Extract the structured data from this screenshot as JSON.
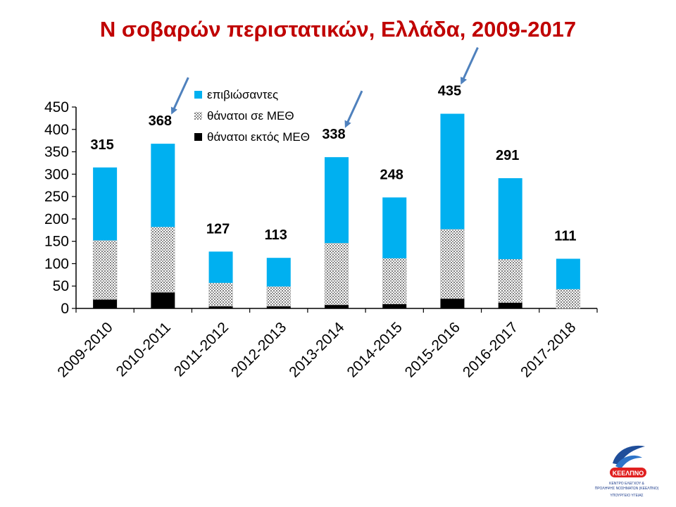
{
  "title": "Ν σοβαρών περιστατικών, Ελλάδα, 2009-2017",
  "colors": {
    "title": "#c00000",
    "survivors": "#00b0f0",
    "deaths_icu": "#a6a6a6",
    "deaths_outside_icu": "#000000",
    "arrow": "#4f81bd",
    "axis": "#000000"
  },
  "chart_data": {
    "type": "bar",
    "stacked": true,
    "categories": [
      "2009-2010",
      "2010-2011",
      "2011-2012",
      "2012-2013",
      "2013-2014",
      "2014-2015",
      "2015-2016",
      "2016-2017",
      "2017-2018"
    ],
    "series": [
      {
        "name": "θάνατοι εκτός ΜΕΘ",
        "pattern": "solid",
        "values": [
          20,
          36,
          5,
          5,
          8,
          10,
          22,
          13,
          0
        ]
      },
      {
        "name": "θάνατοι σε ΜΕΘ",
        "pattern": "dotted",
        "values": [
          132,
          146,
          52,
          44,
          138,
          102,
          155,
          97,
          43
        ]
      },
      {
        "name": "επιβιώσαντες",
        "pattern": "solid",
        "values": [
          163,
          186,
          70,
          64,
          192,
          136,
          258,
          181,
          68
        ]
      }
    ],
    "totals": [
      315,
      368,
      127,
      113,
      338,
      248,
      435,
      291,
      111
    ],
    "totals_labels": [
      "315",
      "368",
      "127",
      "113",
      "338",
      "248",
      "435",
      "291",
      "111"
    ],
    "y_ticks": [
      "0",
      "50",
      "100",
      "150",
      "200",
      "250",
      "300",
      "350",
      "400",
      "450"
    ],
    "ylim": [
      0,
      450
    ],
    "xlabel": "",
    "ylabel": "",
    "grid": false,
    "legend_position": "top-center",
    "legend": [
      "επιβιώσαντες",
      "θάνατοι σε ΜΕΘ",
      "θάνατοι εκτός ΜΕΘ"
    ],
    "highlighted_categories": [
      "2010-2011",
      "2013-2014",
      "2015-2016"
    ]
  },
  "logo": {
    "name": "ΚΕΕΛΠΝΟ",
    "line1": "ΚΕΝΤΡΟ ΕΛΕΓΧΟΥ &",
    "line2": "ΠΡΟΛΗΨΗΣ ΝΟΣΗΜΑΤΩΝ (ΚΕΕΛΠΝΟ)",
    "line3": "ΥΠΟΥΡΓΕΙΟ ΥΓΕΙΑΣ"
  }
}
